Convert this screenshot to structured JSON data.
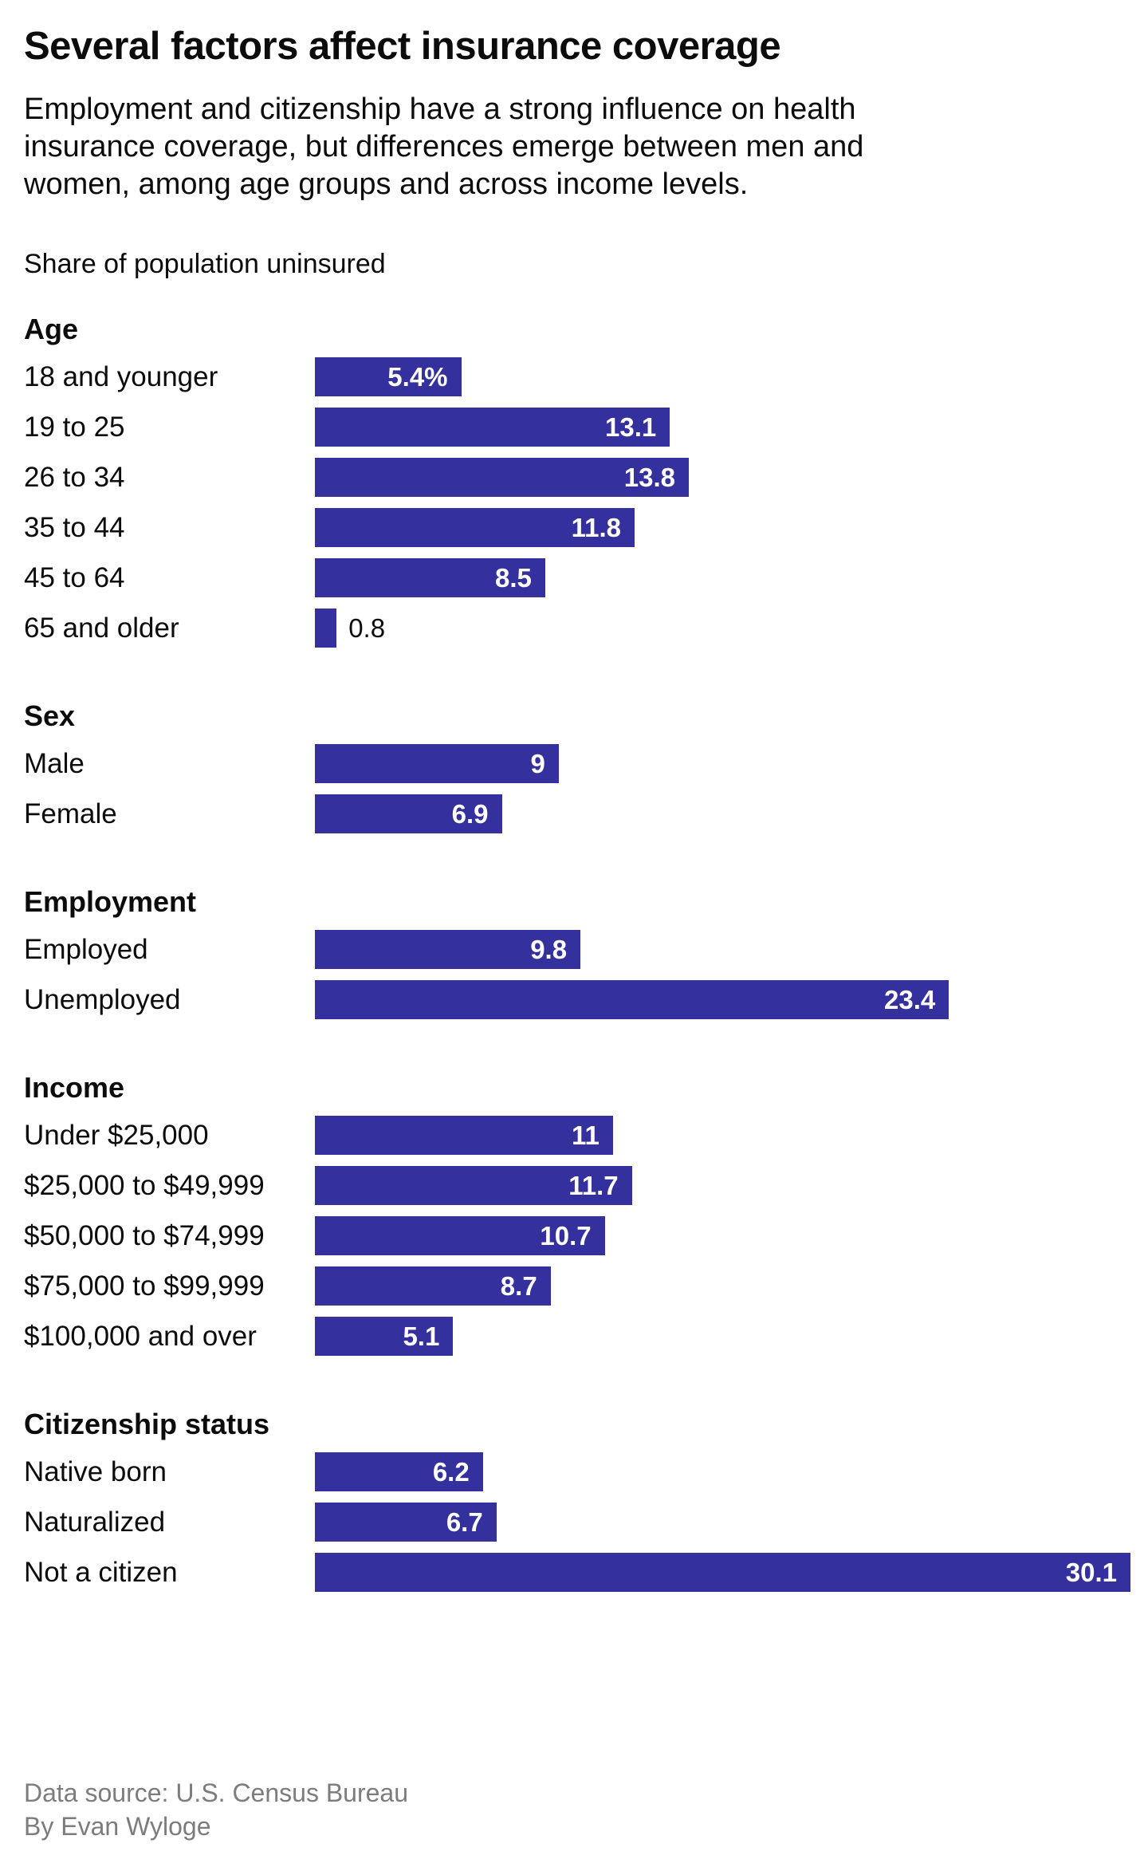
{
  "header": {
    "title": "Several factors affect insurance coverage",
    "subtitle": "Employment and citizenship have a strong influence on health\ninsurance coverage, but differences emerge between men and\nwomen, among age groups and across income levels.",
    "caption": "Share of population uninsured"
  },
  "colors": {
    "bar": "#34309e",
    "text": "#0c0c0c",
    "muted": "#7c7c7c",
    "background": "#ffffff"
  },
  "chart_data": {
    "type": "bar",
    "orientation": "horizontal",
    "value_unit": "percent share of population uninsured",
    "max_value": 30.1,
    "grid": false,
    "legend": false,
    "sections": [
      {
        "title": "Age",
        "rows": [
          {
            "label": "18 and younger",
            "value": 5.4,
            "display": "5.4%"
          },
          {
            "label": "19 to 25",
            "value": 13.1,
            "display": "13.1"
          },
          {
            "label": "26 to 34",
            "value": 13.8,
            "display": "13.8"
          },
          {
            "label": "35 to 44",
            "value": 11.8,
            "display": "11.8"
          },
          {
            "label": "45 to 64",
            "value": 8.5,
            "display": "8.5"
          },
          {
            "label": "65 and older",
            "value": 0.8,
            "display": "0.8"
          }
        ]
      },
      {
        "title": "Sex",
        "rows": [
          {
            "label": "Male",
            "value": 9,
            "display": "9"
          },
          {
            "label": "Female",
            "value": 6.9,
            "display": "6.9"
          }
        ]
      },
      {
        "title": "Employment",
        "rows": [
          {
            "label": "Employed",
            "value": 9.8,
            "display": "9.8"
          },
          {
            "label": "Unemployed",
            "value": 23.4,
            "display": "23.4"
          }
        ]
      },
      {
        "title": "Income",
        "rows": [
          {
            "label": "Under $25,000",
            "value": 11,
            "display": "11"
          },
          {
            "label": "$25,000 to $49,999",
            "value": 11.7,
            "display": "11.7"
          },
          {
            "label": "$50,000 to $74,999",
            "value": 10.7,
            "display": "10.7"
          },
          {
            "label": "$75,000 to $99,999",
            "value": 8.7,
            "display": "8.7"
          },
          {
            "label": "$100,000 and over",
            "value": 5.1,
            "display": "5.1"
          }
        ]
      },
      {
        "title": "Citizenship status",
        "rows": [
          {
            "label": "Native born",
            "value": 6.2,
            "display": "6.2"
          },
          {
            "label": "Naturalized",
            "value": 6.7,
            "display": "6.7"
          },
          {
            "label": "Not a citizen",
            "value": 30.1,
            "display": "30.1"
          }
        ]
      }
    ]
  },
  "footer": {
    "source": "Data source: U.S. Census Bureau",
    "byline": "By Evan Wyloge"
  }
}
